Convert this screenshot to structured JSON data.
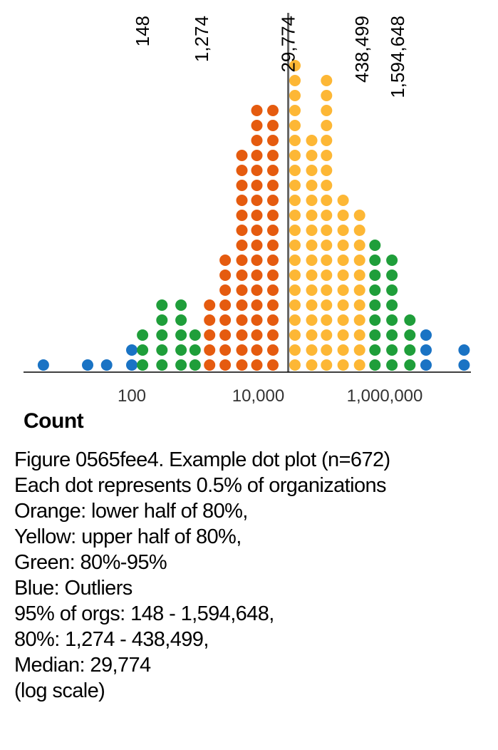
{
  "chart_data": {
    "type": "scatter",
    "subtype": "dot-plot",
    "xscale": "log",
    "xticks": [
      {
        "value": 100,
        "label": "100"
      },
      {
        "value": 10000,
        "label": "10,000"
      },
      {
        "value": 1000000,
        "label": "1,000,000"
      }
    ],
    "xlabel": "Count",
    "reference_lines": [
      {
        "value": 148,
        "label": "148"
      },
      {
        "value": 1274,
        "label": "1,274"
      },
      {
        "value": 29774,
        "label": "29,774",
        "line": true
      },
      {
        "value": 438499,
        "label": "438,499"
      },
      {
        "value": 1594648,
        "label": "1,594,648"
      }
    ],
    "colors": {
      "outlier": "#1a73c4",
      "mid95": "#1f9e3a",
      "lower80": "#e55b0f",
      "upper80": "#fdb735",
      "median_line": "#666666",
      "axis": "#000000"
    },
    "columns": [
      {
        "x": 4,
        "count": 1,
        "group": "outlier"
      },
      {
        "x": 20,
        "count": 1,
        "group": "outlier"
      },
      {
        "x": 40,
        "count": 1,
        "group": "outlier"
      },
      {
        "x": 100,
        "count": 2,
        "group": "outlier"
      },
      {
        "x": 148,
        "count": 3,
        "group": "mid95"
      },
      {
        "x": 300,
        "count": 5,
        "group": "mid95"
      },
      {
        "x": 600,
        "count": 5,
        "group": "mid95"
      },
      {
        "x": 1000,
        "count": 3,
        "group": "mid95"
      },
      {
        "x": 1700,
        "count": 5,
        "group": "lower80"
      },
      {
        "x": 3000,
        "count": 8,
        "group": "lower80"
      },
      {
        "x": 5500,
        "count": 15,
        "group": "lower80"
      },
      {
        "x": 9500,
        "count": 18,
        "group": "lower80"
      },
      {
        "x": 17000,
        "count": 18,
        "group": "lower80"
      },
      {
        "x": 38000,
        "count": 21,
        "group": "upper80"
      },
      {
        "x": 70000,
        "count": 16,
        "group": "upper80"
      },
      {
        "x": 120000,
        "count": 20,
        "group": "upper80"
      },
      {
        "x": 220000,
        "count": 12,
        "group": "upper80"
      },
      {
        "x": 400000,
        "count": 11,
        "group": "upper80"
      },
      {
        "x": 700000,
        "count": 9,
        "group": "mid95"
      },
      {
        "x": 1300000,
        "count": 8,
        "group": "mid95"
      },
      {
        "x": 2500000,
        "count": 4,
        "group": "mid95"
      },
      {
        "x": 4500000,
        "count": 3,
        "group": "outlier"
      },
      {
        "x": 18000000,
        "count": 2,
        "group": "outlier"
      }
    ]
  },
  "caption": {
    "lines": [
      "Figure 0565fee4. Example dot plot (n=672)",
      "Each dot represents 0.5% of organizations",
      "Orange: lower half of 80%,",
      "Yellow: upper half of 80%,",
      "Green: 80%-95%",
      "Blue: Outliers",
      "95% of orgs: 148 - 1,594,648,",
      "80%: 1,274 - 438,499,",
      "Median: 29,774",
      "(log scale)"
    ]
  }
}
